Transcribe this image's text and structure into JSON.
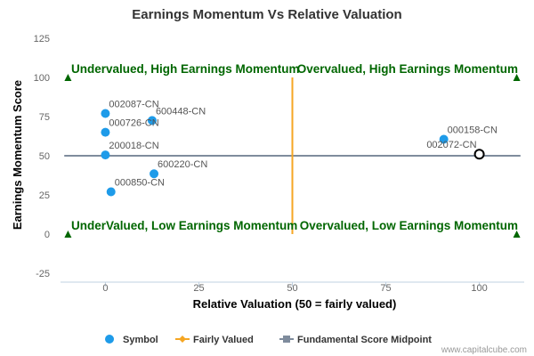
{
  "chart_data": {
    "type": "scatter",
    "title": "Earnings Momentum Vs Relative Valuation",
    "xlabel": "Relative Valuation (50 = fairly valued)",
    "ylabel": "Earnings Momentum Score",
    "xlim": [
      -12,
      112
    ],
    "ylim": [
      -25,
      125
    ],
    "x_ticks": [
      0,
      25,
      50,
      75,
      100
    ],
    "y_ticks": [
      -25,
      0,
      25,
      50,
      75,
      100,
      125
    ],
    "points": [
      {
        "label": "002087-CN",
        "x": 0,
        "y": 77
      },
      {
        "label": "600448-CN",
        "x": 12.5,
        "y": 72.5
      },
      {
        "label": "000726-CN",
        "x": 0,
        "y": 65
      },
      {
        "label": "200018-CN",
        "x": 0,
        "y": 50.5
      },
      {
        "label": "600220-CN",
        "x": 13,
        "y": 38.5
      },
      {
        "label": "000850-CN",
        "x": 1.5,
        "y": 27
      },
      {
        "label": "000158-CN",
        "x": 90.5,
        "y": 60.5
      }
    ],
    "highlight_point": {
      "label": "002072-CN",
      "x": 100,
      "y": 51
    },
    "fairly_valued_x": 50,
    "midpoint_y": 50,
    "quadrant_labels": {
      "top_left": "Undervalued, High Earnings Momentum",
      "top_right": "Overvalued, High Earnings Momentum",
      "bottom_left": "UnderValued, Low Earnings Momentum",
      "bottom_right": "Overvalued, Low Earnings Momentum"
    },
    "legend": [
      {
        "name": "Symbol",
        "color": "#1e9be9"
      },
      {
        "name": "Fairly Valued",
        "color": "#f5a623"
      },
      {
        "name": "Fundamental Score Midpoint",
        "color": "#7f8c9d"
      }
    ],
    "legend_position": "bottom",
    "grid": false,
    "colors": {
      "symbol": "#1e9be9",
      "fairly_valued": "#f5a623",
      "midpoint": "#7f8c9d",
      "quadrant_text": "#006600",
      "marker": "#006600"
    }
  },
  "credit": "www.capitalcube.com"
}
